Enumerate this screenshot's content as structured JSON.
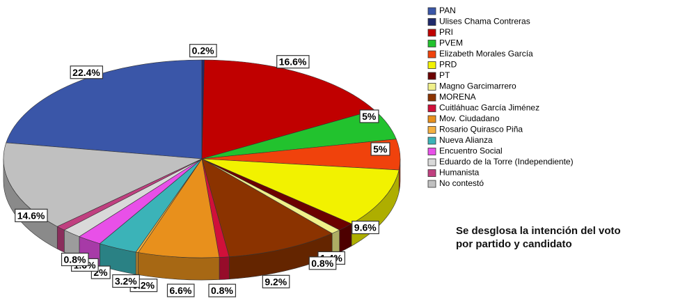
{
  "chart_data": {
    "type": "pie",
    "annotation": "Se desglosa la intención del voto por partido y candidato",
    "categories": [
      "PAN",
      "Ulises Chama Contreras",
      "PRI",
      "PVEM",
      "Elizabeth Morales García",
      "PRD",
      "PT",
      "Magno Garcimarrero",
      "MORENA",
      "Cuitláhuac García Jiménez",
      "Mov. Ciudadano",
      "Rosario Quirasco Piña",
      "Nueva Alianza",
      "Encuentro Social",
      "Eduardo de la Torre (Independiente)",
      "Humanista",
      "No contestó"
    ],
    "values": [
      22.4,
      0.2,
      16.6,
      5,
      5,
      9.6,
      1.4,
      0.8,
      9.2,
      0.8,
      6.6,
      0.2,
      3.2,
      2,
      1.6,
      0.8,
      14.6
    ],
    "value_labels": [
      "22.4%",
      "0.2%",
      "16.6%",
      "5%",
      "5%",
      "9.6%",
      "1.4%",
      "0.8%",
      "9.2%",
      "0.8%",
      "6.6%",
      "0.2%",
      "3.2%",
      "2%",
      "1.6%",
      "0.8%",
      "14.6%"
    ],
    "colors": [
      "#3a56a8",
      "#1f2a6b",
      "#c00000",
      "#22c22e",
      "#f0420c",
      "#f2f200",
      "#6b0000",
      "#f0f08a",
      "#8b3300",
      "#d0103a",
      "#e8901c",
      "#f4b040",
      "#3bb3b8",
      "#e850e8",
      "#d9d9d9",
      "#c04080",
      "#c0c0c0"
    ]
  }
}
